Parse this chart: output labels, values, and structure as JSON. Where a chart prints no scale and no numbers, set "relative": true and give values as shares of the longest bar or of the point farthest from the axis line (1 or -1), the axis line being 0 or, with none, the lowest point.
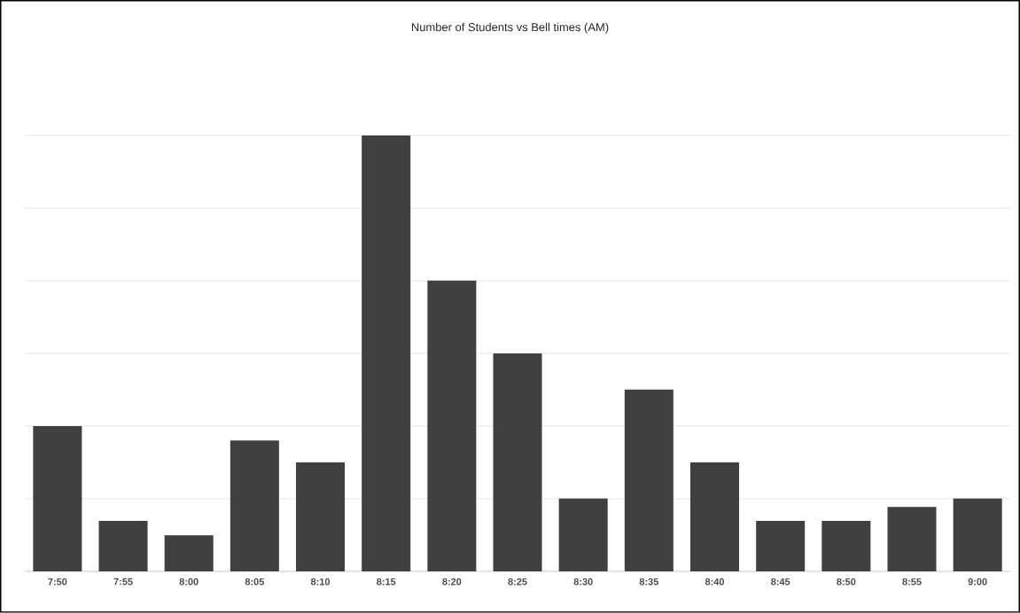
{
  "chart_data": {
    "type": "bar",
    "title": "Number of Students vs Bell times (AM)",
    "relative": true,
    "categories": [
      "7:50",
      "7:55",
      "8:00",
      "8:05",
      "8:10",
      "8:15",
      "8:20",
      "8:25",
      "8:30",
      "8:35",
      "8:40",
      "8:45",
      "8:50",
      "8:55",
      "9:00"
    ],
    "values": [
      0.333,
      0.116,
      0.083,
      0.3,
      0.25,
      1,
      0.667,
      0.5,
      0.167,
      0.417,
      0.25,
      0.116,
      0.116,
      0.148,
      0.167
    ],
    "color": "#404040",
    "grid": "y"
  }
}
